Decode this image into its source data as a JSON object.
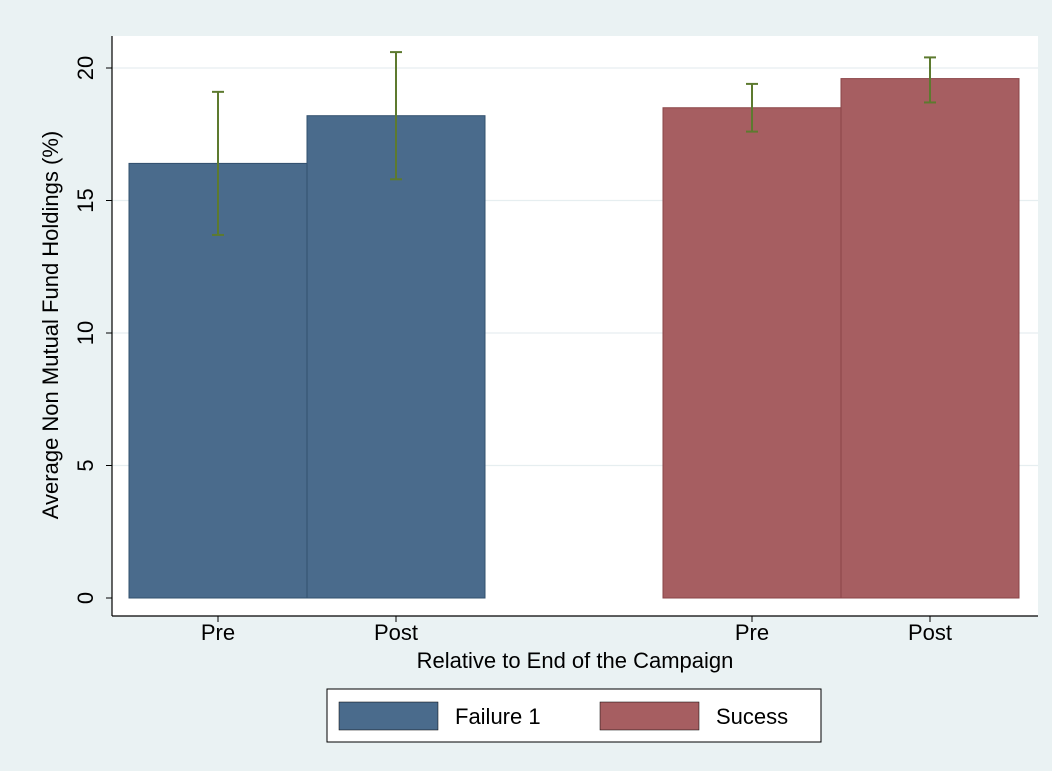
{
  "chart_data": {
    "type": "bar",
    "title": "",
    "xlabel": "Relative to End of the Campaign",
    "ylabel": "Average Non Mutual Fund Holdings (%)",
    "ylim": [
      0,
      21.5
    ],
    "yticks": [
      0,
      5,
      10,
      15,
      20
    ],
    "grid": true,
    "legend_position": "bottom",
    "groups": [
      {
        "name": "Failure 1",
        "color": "#4a6b8c",
        "categories": [
          "Pre",
          "Post"
        ],
        "values": [
          16.4,
          18.2
        ],
        "ci_low": [
          13.7,
          15.8
        ],
        "ci_high": [
          19.1,
          20.6
        ]
      },
      {
        "name": "Sucess",
        "color": "#a65e61",
        "categories": [
          "Pre",
          "Post"
        ],
        "values": [
          18.5,
          19.6
        ],
        "ci_low": [
          17.6,
          18.7
        ],
        "ci_high": [
          19.4,
          20.4
        ]
      }
    ],
    "errorbar_color": "#5d7a2f",
    "background_color": "#eaf2f3"
  }
}
